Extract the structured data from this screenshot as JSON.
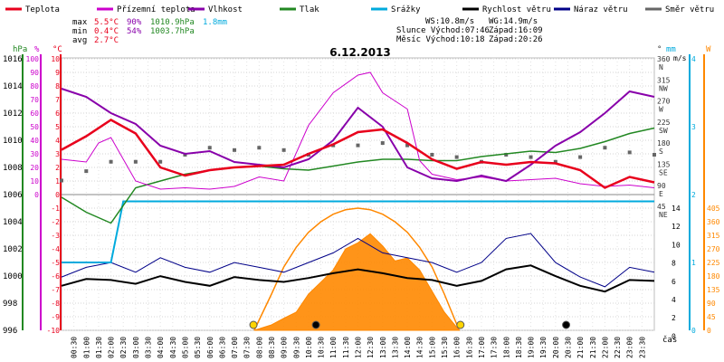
{
  "chart_data": {
    "type": "line",
    "title": "6.12.2013",
    "legend": [
      {
        "name": "Teplota",
        "color": "#e8001c"
      },
      {
        "name": "Přízemní teplota",
        "color": "#cc00cc"
      },
      {
        "name": "Vlhkost",
        "color": "#8800aa"
      },
      {
        "name": "Tlak",
        "color": "#228822"
      },
      {
        "name": "Srážky",
        "color": "#00aadd"
      },
      {
        "name": "Rychlost větru",
        "color": "#000000"
      },
      {
        "name": "Náraz větru",
        "color": "#000088"
      },
      {
        "name": "Směr větru",
        "color": "#666666"
      }
    ],
    "stats": {
      "max": {
        "label": "max",
        "temp": "5.5°C",
        "hum": "90%",
        "press": "1010.9hPa",
        "rain": "1.8mm"
      },
      "min": {
        "label": "min",
        "temp": "0.4°C",
        "hum": "54%",
        "press": "1003.7hPa"
      },
      "avg": {
        "label": "avg",
        "temp": "2.7°C"
      }
    },
    "info": {
      "ws": "WS:10.8m/s",
      "wg": "WG:14.9m/s",
      "sun_rise": "Slunce Východ:07:46",
      "sun_set": "Západ:16:09",
      "moon_rise": "Měsíc  Východ:10:18",
      "moon_set": "Západ:20:26"
    },
    "axes": {
      "hpa": {
        "label": "hPa",
        "ticks": [
          "1016",
          "1014",
          "1012",
          "1010",
          "1008",
          "1006",
          "1004",
          "1002",
          "1000",
          "998",
          "996"
        ]
      },
      "pct": {
        "label": "%",
        "ticks": [
          "100",
          "90",
          "80",
          "70",
          "60",
          "50",
          "40",
          "30",
          "20",
          "10",
          "0"
        ]
      },
      "celsius": {
        "label": "°C",
        "ticks": [
          "10",
          "9",
          "8",
          "7",
          "6",
          "5",
          "4",
          "3",
          "2",
          "1",
          "0",
          "-1",
          "-2",
          "-3",
          "-4",
          "-5",
          "-6",
          "-7",
          "-8",
          "-9",
          "-10"
        ]
      },
      "deg": {
        "label": "°",
        "ticks": [
          {
            "deg": "360",
            "dir": "N"
          },
          {
            "deg": "315",
            "dir": "NW"
          },
          {
            "deg": "270",
            "dir": "W"
          },
          {
            "deg": "225",
            "dir": "SW"
          },
          {
            "deg": "180",
            "dir": "S"
          },
          {
            "deg": "135",
            "dir": "SE"
          },
          {
            "deg": "90",
            "dir": "E"
          },
          {
            "deg": "45",
            "dir": "NE"
          }
        ]
      },
      "mm": {
        "label": "mm",
        "ticks": [
          "4",
          "3",
          "2",
          "1",
          "0"
        ]
      },
      "ms": {
        "label": "m/s",
        "ticks": [
          "14",
          "12",
          "10",
          "8",
          "6",
          "4",
          "2",
          "0"
        ]
      },
      "wm2": {
        "label": "W",
        "ticks": [
          "405",
          "360",
          "315",
          "270",
          "225",
          "180",
          "135",
          "90",
          "45",
          "0"
        ]
      },
      "x": {
        "label": "čas",
        "ticks": [
          "00:30",
          "01:00",
          "01:30",
          "02:00",
          "02:30",
          "03:00",
          "03:30",
          "04:00",
          "04:30",
          "05:00",
          "05:30",
          "06:00",
          "06:30",
          "07:00",
          "07:30",
          "08:00",
          "08:30",
          "09:00",
          "09:30",
          "10:00",
          "10:30",
          "11:00",
          "11:30",
          "12:00",
          "12:30",
          "13:00",
          "13:30",
          "14:00",
          "14:30",
          "15:00",
          "15:30",
          "16:00",
          "16:30",
          "17:00",
          "17:30",
          "18:00",
          "18:30",
          "19:00",
          "19:30",
          "20:00",
          "20:30",
          "21:00",
          "21:30",
          "22:00",
          "22:30",
          "23:00",
          "23:30"
        ]
      }
    },
    "x_range_hours": [
      0,
      24
    ],
    "series_temp": {
      "name": "Teplota",
      "unit": "°C",
      "x": [
        0,
        1,
        2,
        3,
        4,
        5,
        6,
        7,
        8,
        9,
        10,
        11,
        12,
        13,
        14,
        15,
        16,
        17,
        18,
        19,
        20,
        21,
        22,
        23,
        24
      ],
      "y": [
        3.3,
        4.3,
        5.5,
        4.5,
        2.0,
        1.4,
        1.8,
        2.0,
        2.1,
        2.2,
        3.0,
        3.7,
        4.6,
        4.8,
        3.8,
        2.6,
        1.9,
        2.4,
        2.2,
        2.4,
        2.3,
        1.8,
        0.5,
        1.3,
        0.9
      ]
    },
    "series_ground": {
      "name": "Přízemní teplota",
      "unit": "°C",
      "x": [
        0,
        1,
        1.5,
        2,
        3,
        4,
        5,
        6,
        7,
        8,
        9,
        10,
        11,
        12,
        12.5,
        13,
        14,
        14.5,
        15,
        16,
        17,
        18,
        19,
        20,
        21,
        22,
        23,
        24
      ],
      "y": [
        2.6,
        2.4,
        3.8,
        4.2,
        1.0,
        0.4,
        0.5,
        0.4,
        0.6,
        1.3,
        1.0,
        5.1,
        7.5,
        8.8,
        9.0,
        7.5,
        6.3,
        2.5,
        1.5,
        1.1,
        1.3,
        1.0,
        1.1,
        1.2,
        0.8,
        0.6,
        0.7,
        0.5
      ]
    },
    "series_humidity": {
      "name": "Vlhkost",
      "unit": "%",
      "x": [
        0,
        1,
        2,
        3,
        4,
        5,
        6,
        7,
        8,
        9,
        10,
        11,
        12,
        13,
        14,
        15,
        16,
        17,
        18,
        19,
        20,
        21,
        22,
        23,
        24
      ],
      "y": [
        89,
        86,
        80,
        76,
        68,
        65,
        66,
        62,
        61,
        60,
        63,
        70,
        82,
        75,
        60,
        56,
        55,
        57,
        55,
        61,
        68,
        73,
        80,
        88,
        86
      ]
    },
    "series_pressure": {
      "name": "Tlak",
      "unit": "hPa",
      "x": [
        0,
        1,
        2,
        3,
        4,
        5,
        6,
        7,
        8,
        9,
        10,
        11,
        12,
        13,
        14,
        15,
        16,
        17,
        18,
        19,
        20,
        21,
        22,
        23,
        24
      ],
      "y": [
        1005.8,
        1004.7,
        1003.9,
        1006.5,
        1007.0,
        1007.5,
        1007.8,
        1008.0,
        1008.1,
        1007.9,
        1007.8,
        1008.1,
        1008.4,
        1008.6,
        1008.6,
        1008.5,
        1008.5,
        1008.8,
        1009.0,
        1009.2,
        1009.1,
        1009.4,
        1009.9,
        1010.5,
        1010.9
      ]
    },
    "series_rain": {
      "name": "Srážky",
      "unit": "mm",
      "x": [
        0,
        2.0,
        2.5,
        3,
        24
      ],
      "y": [
        0,
        0,
        1.8,
        1.8,
        1.8
      ]
    },
    "series_wind": {
      "name": "Rychlost větru",
      "unit": "m/s",
      "x": [
        0,
        1,
        2,
        3,
        4,
        5,
        6,
        7,
        8,
        9,
        10,
        11,
        12,
        13,
        14,
        15,
        16,
        17,
        18,
        19,
        20,
        21,
        22,
        23,
        24
      ],
      "y": [
        4.6,
        5.3,
        5.2,
        4.8,
        5.6,
        5.0,
        4.6,
        5.5,
        5.2,
        5.0,
        5.4,
        5.9,
        6.3,
        5.9,
        5.4,
        5.2,
        4.6,
        5.1,
        6.3,
        6.7,
        5.6,
        4.6,
        4.0,
        5.2,
        5.1
      ]
    },
    "series_gust": {
      "name": "Náraz větru",
      "unit": "m/s",
      "x": [
        0,
        1,
        2,
        3,
        4,
        5,
        6,
        7,
        8,
        9,
        10,
        11,
        12,
        13,
        14,
        15,
        16,
        17,
        18,
        19,
        20,
        21,
        22,
        23,
        24
      ],
      "y": [
        5.5,
        6.5,
        7.0,
        6.0,
        7.5,
        6.5,
        6.0,
        7.0,
        6.5,
        6.0,
        7.0,
        8.0,
        9.5,
        8.0,
        7.5,
        7.0,
        6.0,
        7.0,
        9.5,
        10.0,
        7.0,
        5.5,
        4.5,
        6.5,
        6.0
      ]
    },
    "series_dir": {
      "name": "Směr větru",
      "unit": "°",
      "x": [
        0,
        1,
        2,
        3,
        4,
        5,
        6,
        7,
        8,
        9,
        10,
        11,
        12,
        13,
        14,
        15,
        16,
        17,
        18,
        19,
        20,
        21,
        22,
        23,
        24
      ],
      "y": [
        210,
        230,
        250,
        250,
        250,
        265,
        280,
        275,
        280,
        275,
        265,
        285,
        285,
        290,
        285,
        265,
        260,
        250,
        265,
        260,
        250,
        260,
        280,
        270,
        265
      ]
    },
    "series_solar": {
      "name": "Sluneční záření",
      "unit": "W/m²",
      "x": [
        7.8,
        8.5,
        9,
        9.5,
        10,
        10.5,
        11,
        11.5,
        12,
        12.5,
        13,
        13.5,
        14,
        14.5,
        15,
        15.5,
        16.1
      ],
      "y": [
        0,
        18,
        40,
        60,
        120,
        160,
        200,
        270,
        290,
        320,
        280,
        230,
        240,
        200,
        130,
        60,
        0
      ]
    },
    "series_solar_max": {
      "name": "Teoretické záření",
      "unit": "W/m²",
      "x": [
        7.8,
        8.5,
        9,
        9.5,
        10,
        10.5,
        11,
        11.5,
        12,
        12.5,
        13,
        13.5,
        14,
        14.5,
        15,
        15.5,
        16.1
      ],
      "y": [
        0,
        120,
        210,
        275,
        325,
        360,
        385,
        400,
        405,
        400,
        385,
        360,
        325,
        275,
        210,
        120,
        0
      ]
    },
    "markers": [
      {
        "name": "sunrise",
        "hour": 7.77,
        "color": "#ffd400"
      },
      {
        "name": "moonrise",
        "hour": 10.3,
        "color": "#000000"
      },
      {
        "name": "sunset",
        "hour": 16.15,
        "color": "#ffd400"
      },
      {
        "name": "moonset",
        "hour": 20.43,
        "color": "#000000"
      }
    ]
  }
}
